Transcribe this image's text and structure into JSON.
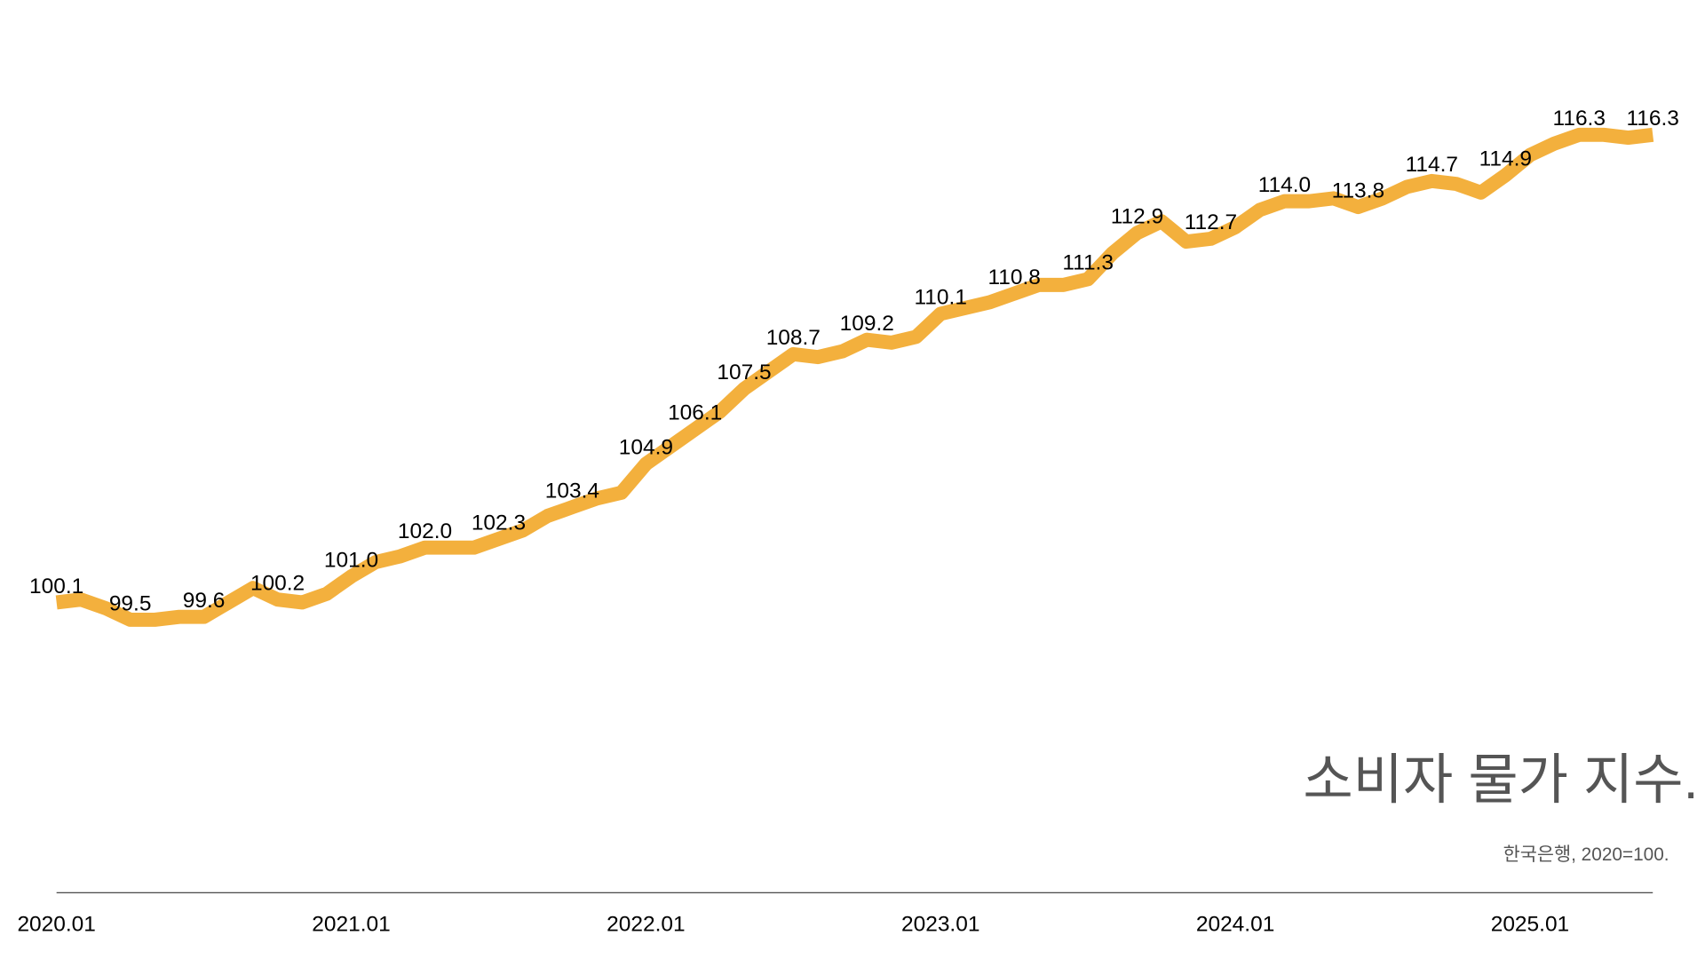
{
  "chart_data": {
    "type": "line",
    "title": "소비자 물가 지수.",
    "subtitle": "한국은행, 2020=100.",
    "color": "#f3b03d",
    "categories": [
      "2020.01",
      null,
      null,
      null,
      null,
      null,
      null,
      null,
      null,
      null,
      null,
      null,
      "2021.01",
      null,
      null,
      null,
      null,
      null,
      null,
      null,
      null,
      null,
      null,
      null,
      "2022.01",
      null,
      null,
      null,
      null,
      null,
      null,
      null,
      null,
      null,
      null,
      null,
      "2023.01",
      null,
      null,
      null,
      null,
      null,
      null,
      null,
      null,
      null,
      null,
      null,
      "2024.01",
      null,
      null,
      null,
      null,
      null,
      null,
      null,
      null,
      null,
      null,
      null,
      "2025.01",
      null,
      null,
      null,
      null,
      null
    ],
    "values": [
      100.1,
      100.2,
      99.9,
      99.5,
      99.5,
      99.6,
      99.6,
      100.1,
      100.6,
      100.2,
      100.1,
      100.4,
      101.0,
      101.5,
      101.7,
      102.0,
      102.0,
      102.0,
      102.3,
      102.6,
      103.1,
      103.4,
      103.7,
      103.9,
      104.9,
      105.5,
      106.1,
      106.7,
      107.5,
      108.1,
      108.7,
      108.6,
      108.8,
      109.2,
      109.1,
      109.3,
      110.1,
      110.3,
      110.5,
      110.8,
      111.1,
      111.1,
      111.3,
      112.2,
      112.9,
      113.3,
      112.6,
      112.7,
      113.1,
      113.7,
      114.0,
      114.0,
      114.1,
      113.8,
      114.1,
      114.5,
      114.7,
      114.6,
      114.3,
      114.9,
      115.6,
      116.0,
      116.3,
      116.3,
      116.2,
      116.3
    ],
    "value_labels": [
      "100.1",
      null,
      null,
      "99.5",
      null,
      null,
      "99.6",
      null,
      null,
      "100.2",
      null,
      null,
      "101.0",
      null,
      null,
      "102.0",
      null,
      null,
      "102.3",
      null,
      null,
      "103.4",
      null,
      null,
      "104.9",
      null,
      "106.1",
      null,
      "107.5",
      null,
      "108.7",
      null,
      null,
      "109.2",
      null,
      null,
      "110.1",
      null,
      null,
      "110.8",
      null,
      null,
      "111.3",
      null,
      "112.9",
      null,
      null,
      "112.7",
      null,
      null,
      "114.0",
      null,
      null,
      "113.8",
      null,
      null,
      "114.7",
      null,
      null,
      "114.9",
      null,
      null,
      "116.3",
      null,
      null,
      "116.3"
    ]
  }
}
